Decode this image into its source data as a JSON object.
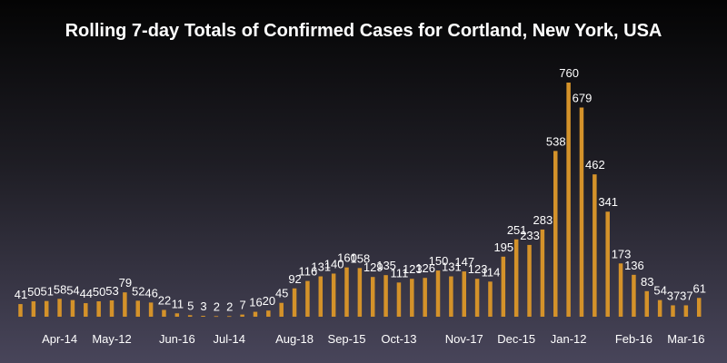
{
  "chart_data": {
    "type": "bar",
    "title": "Rolling 7-day Totals of Confirmed Cases for Cortland, New York, USA",
    "xlabel": "",
    "ylabel": "",
    "ylim": [
      0,
      760
    ],
    "grid": false,
    "bar_color": "#d4922a",
    "values": [
      41,
      50,
      51,
      58,
      54,
      44,
      50,
      53,
      79,
      52,
      46,
      22,
      11,
      5,
      3,
      2,
      2,
      7,
      16,
      20,
      45,
      92,
      116,
      131,
      140,
      160,
      158,
      129,
      135,
      111,
      123,
      126,
      150,
      131,
      147,
      123,
      114,
      195,
      251,
      233,
      283,
      538,
      760,
      679,
      462,
      341,
      173,
      136,
      83,
      54,
      37,
      37,
      61
    ],
    "tick_labels": [
      {
        "label": "Apr-14",
        "index": 3
      },
      {
        "label": "May-12",
        "index": 7
      },
      {
        "label": "Jun-16",
        "index": 12
      },
      {
        "label": "Jul-14",
        "index": 16
      },
      {
        "label": "Aug-18",
        "index": 21
      },
      {
        "label": "Sep-15",
        "index": 25
      },
      {
        "label": "Oct-13",
        "index": 29
      },
      {
        "label": "Nov-17",
        "index": 34
      },
      {
        "label": "Dec-15",
        "index": 38
      },
      {
        "label": "Jan-12",
        "index": 42
      },
      {
        "label": "Feb-16",
        "index": 47
      },
      {
        "label": "Mar-16",
        "index": 51
      }
    ]
  }
}
